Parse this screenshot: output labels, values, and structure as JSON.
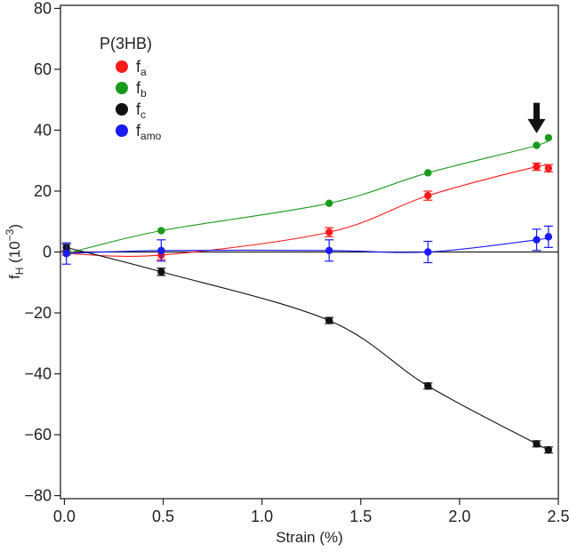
{
  "chart_data": {
    "type": "line",
    "xlabel": "Strain (%)",
    "ylabel_main": "f",
    "ylabel_sub": "H",
    "ylabel_unit_open": " (10",
    "ylabel_unit_exp": "−3",
    "ylabel_unit_close": ")",
    "xlim": [
      -0.02,
      2.5
    ],
    "ylim": [
      -81,
      81
    ],
    "x_ticks": [
      0.0,
      0.5,
      1.0,
      1.5,
      2.0,
      2.5
    ],
    "x_tick_labels": [
      "0.0",
      "0.5",
      "1.0",
      "1.5",
      "2.0",
      "2.5"
    ],
    "y_ticks": [
      -80,
      -60,
      -40,
      -20,
      0,
      20,
      40,
      60,
      80
    ],
    "y_tick_labels": [
      "−80",
      "−60",
      "−40",
      "−20",
      "0",
      "20",
      "40",
      "60",
      "80"
    ],
    "zero_line": 0,
    "legend_title": "P(3HB)",
    "legend_location": "top-left",
    "annotation": {
      "type": "down-arrow",
      "x": 2.39,
      "y_from": 49,
      "y_to": 39
    },
    "series": [
      {
        "name": "f_a",
        "label_main": "f",
        "label_sub": "a",
        "color": "#ff1a1a",
        "x": [
          0.01,
          0.49,
          1.34,
          1.84,
          2.39,
          2.45
        ],
        "y": [
          -0.5,
          -1.0,
          6.5,
          18.5,
          28.0,
          27.5
        ],
        "err": [
          0.5,
          1.5,
          1.5,
          1.5,
          1.2,
          1.2
        ]
      },
      {
        "name": "f_b",
        "label_main": "f",
        "label_sub": "b",
        "color": "#1a9a1a",
        "x": [
          0.01,
          0.49,
          1.34,
          1.84,
          2.39,
          2.45
        ],
        "y": [
          -0.5,
          7.0,
          16.0,
          26.0,
          35.0,
          37.5
        ],
        "err": [
          0,
          0,
          0,
          0,
          0,
          0
        ]
      },
      {
        "name": "f_c",
        "label_main": "f",
        "label_sub": "c",
        "color": "#111111",
        "x": [
          0.01,
          0.49,
          1.34,
          1.84,
          2.39,
          2.45
        ],
        "y": [
          1.5,
          -6.5,
          -22.5,
          -44.0,
          -63.0,
          -65.0
        ],
        "err": [
          1.0,
          1.2,
          1.0,
          1.0,
          1.0,
          1.0
        ]
      },
      {
        "name": "f_amo",
        "label_main": "f",
        "label_sub": "amo",
        "color": "#1a1aff",
        "x": [
          0.01,
          0.49,
          1.34,
          1.84,
          2.39,
          2.45
        ],
        "y": [
          -0.5,
          0.5,
          0.5,
          0.0,
          4.0,
          5.0
        ],
        "err": [
          3.5,
          3.5,
          3.5,
          3.5,
          3.5,
          3.5
        ]
      }
    ]
  }
}
